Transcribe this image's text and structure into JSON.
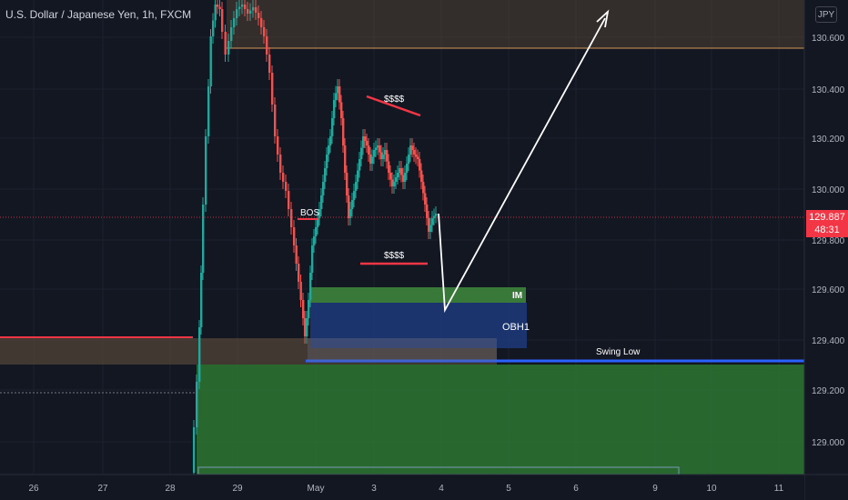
{
  "header": {
    "symbol_title": "U.S. Dollar / Japanese Yen, 1h, FXCM",
    "currency_button": "JPY"
  },
  "current_price": {
    "value": "129.887",
    "countdown": "48:31",
    "color": "#f23645"
  },
  "colors": {
    "background": "#131722",
    "up": "#26a69a",
    "down": "#ef5350",
    "line_red": "#f23645",
    "im_zone": "#3a7d3a",
    "ob_zone": "#1e3a7a",
    "demand_zone": "#2e7d32",
    "supply_zone": "#5a4a3a",
    "swing_line": "#2962ff"
  },
  "chart_data": {
    "type": "candlestick",
    "title": "U.S. Dollar / Japanese Yen, 1h, FXCM",
    "y_ticks": [
      "130.600",
      "130.400",
      "130.200",
      "130.000",
      "129.800",
      "129.600",
      "129.400",
      "129.200",
      "129.000"
    ],
    "x_ticks": [
      "26",
      "27",
      "28",
      "29",
      "May",
      "3",
      "4",
      "5",
      "6",
      "9",
      "10",
      "11"
    ],
    "ylim": [
      128.85,
      130.8
    ],
    "last_price": 129.887,
    "annotations": [
      {
        "label": "BOS",
        "kind": "text"
      },
      {
        "label": "$$$$",
        "kind": "text"
      },
      {
        "label": "$$$$",
        "kind": "text"
      },
      {
        "label": "IM",
        "kind": "zone",
        "low": 129.54,
        "high": 129.61
      },
      {
        "label": "OBH1",
        "kind": "zone",
        "low": 129.38,
        "high": 129.54
      },
      {
        "label": "Swing Low",
        "kind": "line",
        "price": 129.31
      }
    ],
    "zones": [
      {
        "name": "supply",
        "low": 130.56,
        "high": 130.8
      },
      {
        "name": "demand",
        "low": 128.85,
        "high": 129.3
      },
      {
        "name": "prior",
        "low": 129.3,
        "high": 129.4
      }
    ]
  }
}
